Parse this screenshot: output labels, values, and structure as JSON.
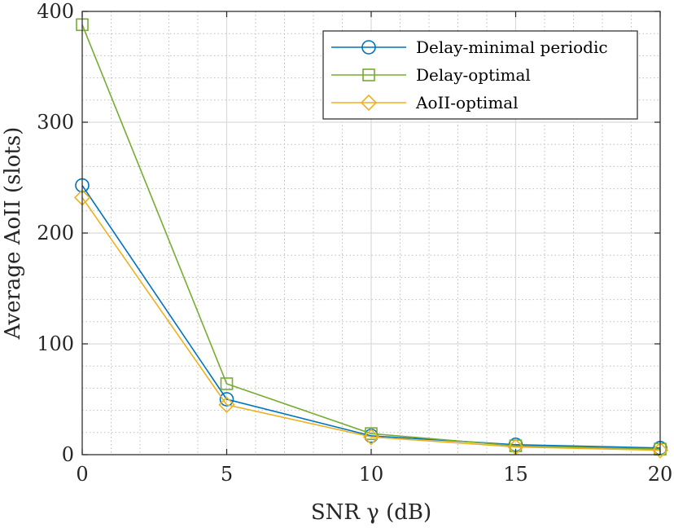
{
  "chart_data": {
    "type": "line",
    "title": "",
    "xlabel": "SNR γ (dB)",
    "ylabel": "Average AoII (slots)",
    "x": [
      0,
      5,
      10,
      15,
      20
    ],
    "xlim": [
      0,
      20
    ],
    "ylim": [
      0,
      400
    ],
    "xticks": [
      "0",
      "5",
      "10",
      "15",
      "20"
    ],
    "yticks": [
      "0",
      "100",
      "200",
      "300",
      "400"
    ],
    "grid": true,
    "minor_grid": true,
    "legend_position": "top-right",
    "series": [
      {
        "name": "Delay-minimal periodic",
        "color": "#0072BD",
        "marker": "circle",
        "values": [
          243,
          50,
          17,
          9,
          6
        ]
      },
      {
        "name": "Delay-optimal",
        "color": "#77AC30",
        "marker": "square",
        "values": [
          388,
          64,
          19,
          8,
          5
        ]
      },
      {
        "name": "AoII-optimal",
        "color": "#EDB120",
        "marker": "diamond",
        "values": [
          232,
          45,
          16,
          7,
          4
        ]
      }
    ]
  }
}
